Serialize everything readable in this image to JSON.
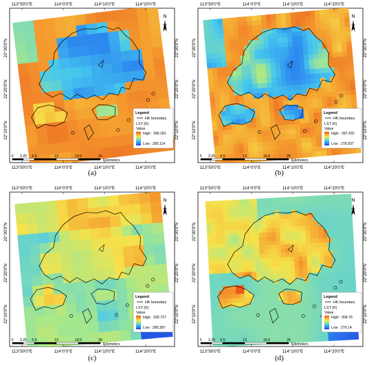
{
  "panels": [
    {
      "caption": "(a)",
      "lon_ticks": [
        "113°50'0\"E",
        "114°0'0\"E",
        "114°10'0\"E",
        "114°20'0\"E"
      ],
      "lat_ticks": [
        "22°30'0\"N",
        "22°20'0\"N",
        "22°10'0\"N"
      ],
      "legend": {
        "title": "Legend",
        "boundary_label": "HK boundary",
        "layer_label": "LST (K)",
        "value_label": "Value",
        "high": "High : 286.281",
        "low": "Low : 280.114"
      },
      "scalebar": {
        "ticks": [
          "0",
          "3.25",
          "6.5",
          "13",
          "19.5",
          "26"
        ],
        "unit": "Kilometers"
      },
      "north_label": "N",
      "ramp": [
        "#1f3fe0",
        "#2f8ef0",
        "#46c8ee",
        "#a6e88c",
        "#f6e24a",
        "#f5a030",
        "#e8501c"
      ]
    },
    {
      "caption": "(b)",
      "lon_ticks": [
        "113°50'0\"E",
        "114°0'0\"E",
        "114°10'0\"E",
        "114°20'0\"E"
      ],
      "lat_ticks": [
        "22°30'0\"N",
        "22°20'0\"N",
        "22°10'0\"N"
      ],
      "legend": {
        "title": "Legend",
        "boundary_label": "HK boundary",
        "layer_label": "LST (K)",
        "value_label": "Value",
        "high": "High : 287.432",
        "low": "Low : 278.937"
      },
      "scalebar": {
        "ticks": [
          "0",
          "3.25",
          "6.5",
          "13",
          "19.5",
          "26"
        ],
        "unit": "Kilometers"
      },
      "north_label": "N",
      "ramp": [
        "#1f3fe0",
        "#2f8ef0",
        "#46c8ee",
        "#a6e88c",
        "#f6e24a",
        "#f5a030",
        "#e8501c"
      ]
    },
    {
      "caption": "(c)",
      "lon_ticks": [
        "113°50'0\"E",
        "114°0'0\"E",
        "114°10'0\"E",
        "114°20'0\"E"
      ],
      "lat_ticks": [
        "22°30'0\"N",
        "22°20'0\"N",
        "22°10'0\"N"
      ],
      "legend": {
        "title": "Legend",
        "boundary_label": "HK boundary",
        "layer_label": "LST (K)",
        "value_label": "Value",
        "high": "High : 293.727",
        "low": "Low : 280.387"
      },
      "scalebar": {
        "ticks": [
          "0",
          "3.25",
          "6.5",
          "13",
          "19.5",
          "26"
        ],
        "unit": "Kilometers"
      },
      "north_label": "N",
      "ramp": [
        "#1f3fe0",
        "#2f8ef0",
        "#46c8ee",
        "#a6e88c",
        "#f6e24a",
        "#f5a030",
        "#e8501c"
      ]
    },
    {
      "caption": "(d)",
      "lon_ticks": [
        "113°50'0\"E",
        "114°0'0\"E",
        "114°10'0\"E",
        "114°20'0\"E"
      ],
      "lat_ticks": [
        "22°30'0\"N",
        "22°20'0\"N",
        "22°10'0\"N"
      ],
      "legend": {
        "title": "Legend",
        "boundary_label": "HK boundary",
        "layer_label": "LST (K)",
        "value_label": "Value",
        "high": "High : 304.76",
        "low": "Low : 279.14"
      },
      "scalebar": {
        "ticks": [
          "0",
          "3.25",
          "6.5",
          "13",
          "19.5",
          "26"
        ],
        "unit": "Kilometers"
      },
      "north_label": "N",
      "ramp": [
        "#1f3fe0",
        "#2f8ef0",
        "#46c8ee",
        "#a6e88c",
        "#f6e24a",
        "#f5a030",
        "#e8501c"
      ]
    }
  ]
}
